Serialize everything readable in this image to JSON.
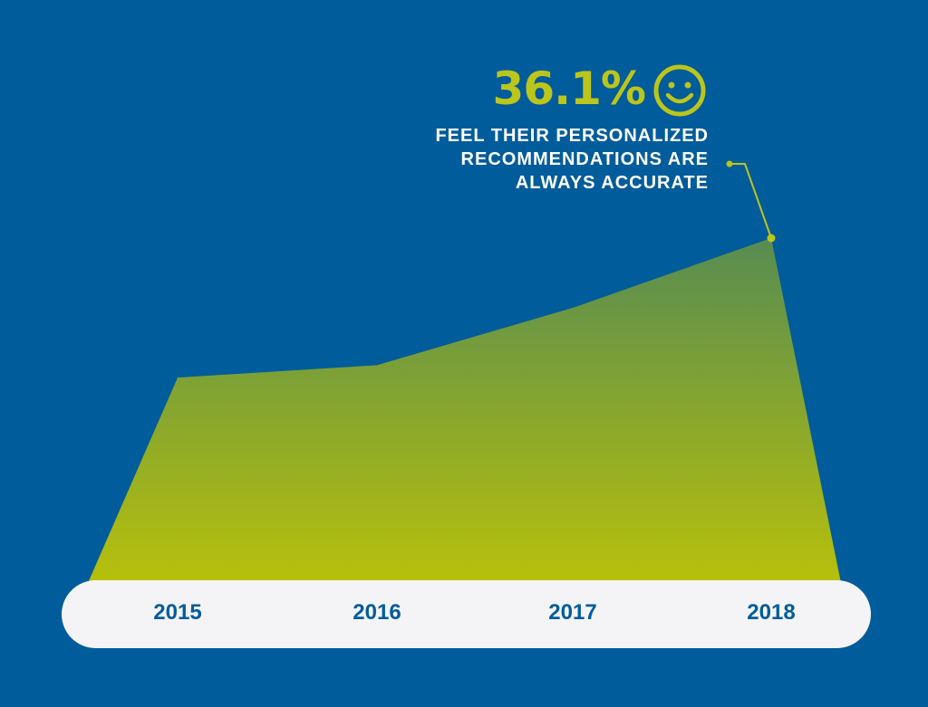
{
  "colors": {
    "background": "#005C9A",
    "accent": "#BCC51C",
    "area_top": "#578C52",
    "area_bottom": "#B7C00B",
    "axis_bar": "#F4F4F6",
    "tick_text": "#005C9A",
    "callout_text": "#FFFFFF"
  },
  "callout": {
    "value": "36.1%",
    "icon": "smiley-icon",
    "lines": [
      "FEEL THEIR PERSONALIZED",
      "RECOMMENDATIONS ARE",
      "ALWAYS ACCURATE"
    ]
  },
  "chart_data": {
    "type": "area",
    "categories": [
      "2015",
      "2016",
      "2017",
      "2018"
    ],
    "values": [
      21.5,
      22.8,
      28.8,
      36.1
    ],
    "ylim": [
      0,
      38
    ],
    "grid": false,
    "legend": "none",
    "annotations": [
      {
        "category": "2018",
        "text": "36.1%"
      }
    ]
  }
}
